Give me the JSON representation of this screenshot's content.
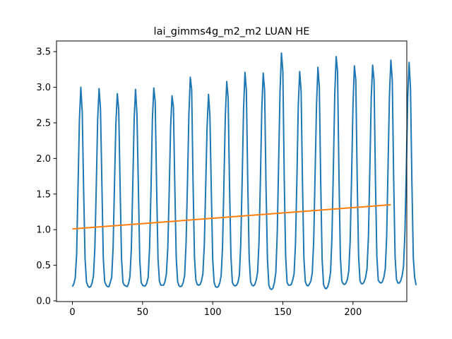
{
  "chart_data": {
    "type": "line",
    "title": "lai_gimms4g_m2_m2 LUAN HE",
    "xlabel": "",
    "ylabel": "",
    "xlim": [
      -11.35,
      238.35
    ],
    "ylim": [
      -0.01,
      3.65
    ],
    "x_ticks": [
      0,
      50,
      100,
      150,
      200
    ],
    "x_tick_labels": [
      "0",
      "50",
      "100",
      "150",
      "200"
    ],
    "y_ticks": [
      0.0,
      0.5,
      1.0,
      1.5,
      2.0,
      2.5,
      3.0,
      3.5
    ],
    "y_tick_labels": [
      "0.0",
      "0.5",
      "1.0",
      "1.5",
      "2.0",
      "2.5",
      "3.0",
      "3.5"
    ],
    "grid": false,
    "legend": "none",
    "series": [
      {
        "color": "#1f77b4",
        "x_start": 0,
        "x_step": 1,
        "values": [
          0.2,
          0.24,
          0.32,
          0.65,
          1.6,
          2.55,
          3.0,
          2.65,
          1.55,
          0.6,
          0.27,
          0.21,
          0.19,
          0.2,
          0.25,
          0.35,
          0.75,
          1.6,
          2.55,
          2.98,
          2.7,
          1.65,
          0.6,
          0.27,
          0.22,
          0.2,
          0.2,
          0.26,
          0.33,
          0.75,
          1.65,
          2.5,
          2.91,
          2.68,
          1.6,
          0.6,
          0.26,
          0.22,
          0.21,
          0.2,
          0.24,
          0.34,
          0.73,
          1.6,
          2.55,
          2.97,
          2.62,
          1.6,
          0.58,
          0.26,
          0.22,
          0.21,
          0.21,
          0.25,
          0.33,
          0.75,
          1.55,
          2.55,
          2.99,
          2.8,
          1.62,
          0.6,
          0.28,
          0.22,
          0.22,
          0.22,
          0.27,
          0.38,
          0.75,
          1.55,
          2.45,
          2.88,
          2.72,
          1.6,
          0.6,
          0.27,
          0.21,
          0.2,
          0.21,
          0.26,
          0.36,
          0.8,
          1.65,
          2.6,
          3.14,
          2.97,
          1.65,
          0.62,
          0.29,
          0.23,
          0.22,
          0.23,
          0.28,
          0.38,
          0.78,
          1.6,
          2.45,
          2.9,
          2.6,
          1.55,
          0.58,
          0.26,
          0.2,
          0.19,
          0.2,
          0.25,
          0.35,
          0.75,
          1.65,
          2.6,
          3.08,
          2.85,
          1.6,
          0.62,
          0.26,
          0.22,
          0.21,
          0.22,
          0.26,
          0.36,
          0.8,
          1.7,
          2.7,
          3.21,
          2.95,
          1.65,
          0.6,
          0.27,
          0.22,
          0.21,
          0.23,
          0.29,
          0.4,
          0.82,
          1.7,
          2.7,
          3.2,
          2.96,
          1.6,
          0.6,
          0.22,
          0.17,
          0.16,
          0.18,
          0.26,
          0.4,
          0.95,
          1.95,
          2.95,
          3.48,
          3.22,
          1.7,
          0.62,
          0.26,
          0.22,
          0.22,
          0.23,
          0.29,
          0.38,
          0.8,
          1.7,
          2.75,
          3.22,
          2.95,
          1.65,
          0.6,
          0.27,
          0.22,
          0.21,
          0.24,
          0.28,
          0.4,
          0.85,
          1.8,
          2.75,
          3.28,
          3.0,
          1.65,
          0.58,
          0.23,
          0.18,
          0.17,
          0.2,
          0.27,
          0.4,
          0.9,
          1.85,
          2.9,
          3.43,
          3.22,
          1.75,
          0.62,
          0.28,
          0.24,
          0.23,
          0.25,
          0.3,
          0.42,
          0.85,
          1.75,
          2.75,
          3.3,
          3.1,
          1.7,
          0.62,
          0.28,
          0.24,
          0.24,
          0.27,
          0.33,
          0.45,
          0.9,
          1.85,
          2.85,
          3.31,
          3.1,
          1.7,
          0.63,
          0.29,
          0.26,
          0.25,
          0.27,
          0.33,
          0.45,
          0.9,
          1.9,
          2.9,
          3.38,
          3.1,
          1.7,
          0.62,
          0.3,
          0.25,
          0.25,
          0.28,
          0.35,
          0.48,
          0.95,
          1.85,
          2.85,
          3.35,
          2.97,
          1.65,
          0.6,
          0.32,
          0.22
        ]
      },
      {
        "color": "#ff7f0e",
        "x": [
          0,
          227
        ],
        "values": [
          1.01,
          1.35
        ]
      }
    ]
  }
}
